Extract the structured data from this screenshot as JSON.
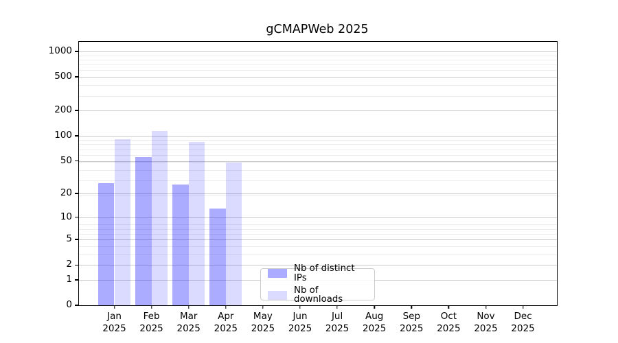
{
  "chart_data": {
    "type": "bar",
    "title": "gCMAPWeb 2025",
    "x_year": "2025",
    "categories": [
      "Jan",
      "Feb",
      "Mar",
      "Apr",
      "May",
      "Jun",
      "Jul",
      "Aug",
      "Sep",
      "Oct",
      "Nov",
      "Dec"
    ],
    "series": [
      {
        "name": "Nb of distinct IPs",
        "color": "rgba(0,0,255,0.33)",
        "values": [
          27,
          55,
          26,
          13,
          0,
          0,
          0,
          0,
          0,
          0,
          0,
          0
        ]
      },
      {
        "name": "Nb of downloads",
        "color": "rgba(0,0,255,0.14)",
        "values": [
          91,
          114,
          85,
          48,
          0,
          0,
          0,
          0,
          0,
          0,
          0,
          0
        ]
      }
    ],
    "xlabel": "",
    "ylabel": "",
    "y_scale": "log10(value+1)",
    "y_ticks": [
      1000,
      500,
      200,
      100,
      50,
      20,
      10,
      5,
      2,
      1,
      0
    ],
    "y_top_value": 1300,
    "grid": true,
    "legend": {
      "position": "lower-center",
      "items": [
        "Nb of distinct IPs",
        "Nb of downloads"
      ]
    }
  }
}
